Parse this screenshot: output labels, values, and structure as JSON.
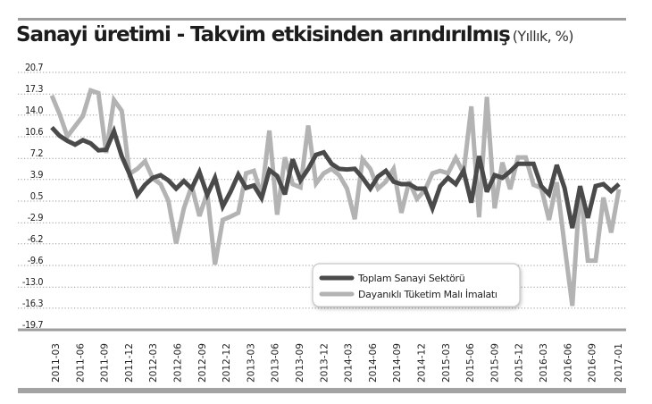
{
  "header": {
    "title": "Sanayi üretimi - Takvim etkisinden arındırılmış",
    "subtitle": "(Yıllık, %)"
  },
  "colors": {
    "series_total": "#4a4a4a",
    "series_durable": "#b3b3b3",
    "rule": "#9e9e9e",
    "grid": "#9a9a9a"
  },
  "chart_data": {
    "type": "line",
    "title": "Sanayi üretimi - Takvim etkisinden arındırılmış (Yıllık, %)",
    "xlabel": "",
    "ylabel": "",
    "ylim": [
      -19.7,
      20.7
    ],
    "yticks": [
      20.7,
      17.3,
      14.0,
      10.6,
      7.2,
      3.9,
      0.5,
      -2.9,
      -6.2,
      -9.6,
      -13.0,
      -16.3,
      -19.7
    ],
    "ytick_labels": [
      "20.7",
      "17.3",
      "14.0",
      "10.6",
      "7.2",
      "3.9",
      "0.5",
      "-2.9",
      "-6.2",
      "-9.6",
      "-13.0",
      "-16.3",
      "-19.7"
    ],
    "xtick_labels": [
      "2011-03",
      "2011-06",
      "2011-09",
      "2011-12",
      "2012-03",
      "2012-06",
      "2012-09",
      "2012-12",
      "2013-03",
      "2013-06",
      "2013-09",
      "2013-12",
      "2014-03",
      "2014-06",
      "2014-09",
      "2014-12",
      "2015-03",
      "2015-06",
      "2015-09",
      "2015-12",
      "2016-03",
      "2016-06",
      "2016-09",
      "2017-01"
    ],
    "grid": true,
    "legend_position": "lower center",
    "x_start": "2011-03",
    "x_end": "2017-01",
    "frequency": "monthly",
    "series": [
      {
        "name": "Toplam Sanayi Sektörü",
        "values": [
          11.5,
          10.2,
          9.4,
          8.8,
          9.5,
          9.0,
          7.9,
          8.0,
          10.9,
          7.0,
          4.2,
          0.9,
          2.5,
          3.6,
          4.0,
          3.2,
          1.9,
          3.1,
          1.9,
          4.5,
          0.9,
          3.6,
          -0.9,
          1.4,
          4.1,
          2.0,
          2.4,
          0.4,
          4.8,
          3.9,
          1.0,
          6.5,
          3.2,
          5.0,
          7.2,
          7.6,
          5.8,
          5.0,
          4.9,
          5.0,
          3.6,
          1.9,
          3.8,
          4.7,
          3.0,
          2.6,
          2.6,
          1.9,
          1.9,
          -1.2,
          2.3,
          3.6,
          2.6,
          4.7,
          -0.3,
          7.0,
          1.4,
          4.0,
          3.6,
          4.6,
          5.8,
          5.8,
          5.8,
          2.3,
          1.0,
          5.6,
          2.0,
          -4.3,
          2.3,
          -2.7,
          2.3,
          2.6,
          1.5,
          2.6
        ]
      },
      {
        "name": "Dayanıklı Tüketim Malı İmalatı",
        "values": [
          16.5,
          13.6,
          10.1,
          11.7,
          13.3,
          17.3,
          16.9,
          7.5,
          15.8,
          14.1,
          4.2,
          5.0,
          6.2,
          3.5,
          2.6,
          0.0,
          -6.7,
          -1.2,
          2.3,
          -2.4,
          1.2,
          -10.0,
          -3.0,
          -2.5,
          -1.9,
          4.3,
          4.7,
          0.8,
          11.0,
          -2.2,
          6.8,
          2.6,
          2.1,
          11.8,
          2.7,
          4.3,
          5.0,
          4.0,
          1.9,
          -2.9,
          6.5,
          5.0,
          1.9,
          3.0,
          5.0,
          -1.9,
          3.0,
          0.3,
          1.6,
          4.3,
          4.7,
          4.3,
          6.7,
          4.3,
          14.8,
          -2.6,
          16.3,
          -1.2,
          6.0,
          1.8,
          6.8,
          6.8,
          2.5,
          2.0,
          -3.0,
          2.9,
          -7.0,
          -16.5,
          2.3,
          -9.4,
          -9.4,
          0.5,
          -5.0,
          1.8
        ]
      }
    ]
  },
  "legend": {
    "items": [
      {
        "label": "Toplam Sanayi Sektörü"
      },
      {
        "label": "Dayanıklı Tüketim Malı İmalatı"
      }
    ]
  }
}
